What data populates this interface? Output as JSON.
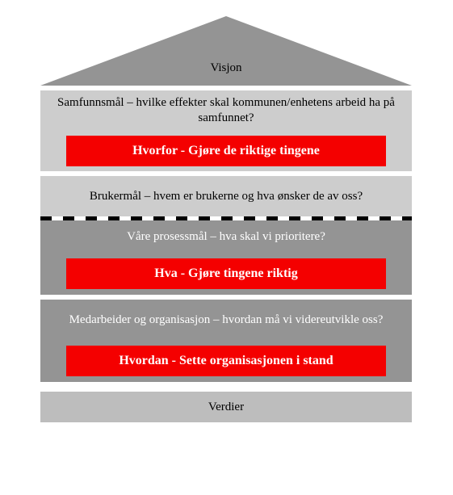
{
  "colors": {
    "roof": "#949494",
    "light": "#cdcdcd",
    "mid": "#bdbdbd",
    "dark": "#949494",
    "red": "#f40000",
    "redText": "#ffffff",
    "blackText": "#000000",
    "whiteText": "#ffffff",
    "gapBg": "#ffffff"
  },
  "typography": {
    "baseFontSize": 15,
    "redFontSize": 16,
    "roofFontSize": 15
  },
  "layout": {
    "houseWidth": 460,
    "roofHeight": 86,
    "roofLabelTop": 56,
    "gapHeight": 6,
    "redHeight": 38,
    "redWidthPct": 86,
    "dashedWidth": 5,
    "dashedDash": "14px"
  },
  "roofLabel": "Visjon",
  "sections": [
    {
      "desc": "Samfunnsmål – hvilke effekter skal kommunen/enhetens arbeid ha på samfunnet?",
      "bg": "light",
      "textColor": "black",
      "descHeight": 50
    },
    {
      "red": "Hvorfor - Gjøre de riktige tingene",
      "bg": "light",
      "containerHeight": 50
    },
    {
      "desc": "Brukermål – hvem er brukerne og hva ønsker de av oss?",
      "bg": "light",
      "textColor": "black",
      "descHeight": 50
    },
    {
      "dashed": true
    },
    {
      "desc": "Våre prosessmål – hva skal vi prioritere?",
      "bg": "dark",
      "textColor": "white",
      "descHeight": 40
    },
    {
      "red": "Hva - Gjøre tingene riktig",
      "bg": "dark",
      "containerHeight": 52
    },
    {
      "desc": "Medarbeider og organisasjon – hvordan må vi videreutvikle oss?",
      "bg": "dark",
      "textColor": "white",
      "descHeight": 50
    },
    {
      "red": "Hvordan - Sette organisasjonen i stand",
      "bg": "dark",
      "containerHeight": 52
    }
  ],
  "footerLabel": "Verdier",
  "footerHeight": 38,
  "footerBg": "mid"
}
